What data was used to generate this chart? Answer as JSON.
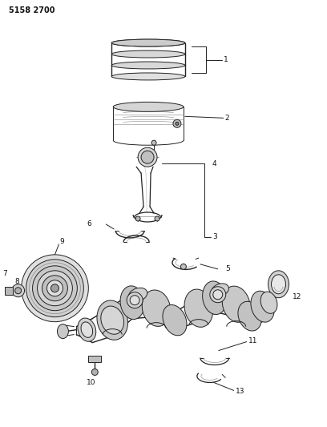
{
  "title": "5158 2700",
  "bg": "#ffffff",
  "lc": "#222222",
  "tc": "#111111",
  "figsize": [
    4.08,
    5.33
  ],
  "dpi": 100,
  "lw": 0.7,
  "label_fontsize": 6.5
}
